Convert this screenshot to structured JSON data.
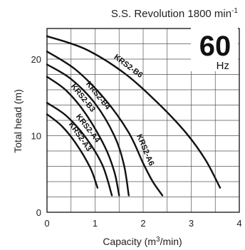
{
  "chart_data": {
    "type": "line",
    "title": "S.S. Revolution 1800 min",
    "title_superscript": "-1",
    "frequency_value": "60",
    "frequency_unit": "Hz",
    "xlabel_prefix": "Capacity (m",
    "xlabel_superscript": "3",
    "xlabel_suffix": "/min)",
    "ylabel": "Total head (m)",
    "xlim": [
      0,
      4
    ],
    "ylim": [
      0,
      24
    ],
    "x_ticks": [
      "0",
      "1",
      "2",
      "3",
      "4"
    ],
    "x_tick_values": [
      0,
      1,
      2,
      3,
      4
    ],
    "y_ticks": [
      "0",
      "10",
      "20"
    ],
    "y_tick_values": [
      0,
      10,
      20
    ],
    "grid": true,
    "series": [
      {
        "name": "KRS2-A3",
        "points": [
          [
            0,
            12.8
          ],
          [
            0.3,
            11.3
          ],
          [
            0.6,
            9.0
          ],
          [
            0.9,
            5.8
          ],
          [
            1.05,
            3.2
          ]
        ]
      },
      {
        "name": "KRS2-A4",
        "points": [
          [
            0,
            14.3
          ],
          [
            0.4,
            12.6
          ],
          [
            0.8,
            9.8
          ],
          [
            1.15,
            6.2
          ],
          [
            1.35,
            2.2
          ]
        ]
      },
      {
        "name": "KRS2-B3",
        "points": [
          [
            0,
            17.7
          ],
          [
            0.4,
            15.9
          ],
          [
            0.8,
            12.9
          ],
          [
            1.2,
            8.6
          ],
          [
            1.4,
            5.3
          ],
          [
            1.5,
            2.2
          ]
        ]
      },
      {
        "name": "KRS2-B4",
        "points": [
          [
            0,
            19.3
          ],
          [
            0.5,
            17.4
          ],
          [
            1.0,
            14.2
          ],
          [
            1.4,
            10.0
          ],
          [
            1.6,
            6.2
          ],
          [
            1.7,
            2.2
          ]
        ]
      },
      {
        "name": "KRS2-A6",
        "points": [
          [
            0,
            21.0
          ],
          [
            0.6,
            18.6
          ],
          [
            1.2,
            14.8
          ],
          [
            1.7,
            10.4
          ],
          [
            2.0,
            6.4
          ],
          [
            2.2,
            4.0
          ],
          [
            2.4,
            2.2
          ]
        ]
      },
      {
        "name": "KRS2-B6",
        "points": [
          [
            0,
            23.0
          ],
          [
            0.8,
            21.3
          ],
          [
            1.6,
            18.2
          ],
          [
            2.3,
            14.3
          ],
          [
            2.9,
            10.3
          ],
          [
            3.3,
            6.8
          ],
          [
            3.6,
            3.2
          ]
        ]
      }
    ]
  }
}
